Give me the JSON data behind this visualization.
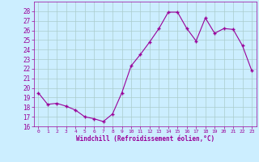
{
  "x": [
    0,
    1,
    2,
    3,
    4,
    5,
    6,
    7,
    8,
    9,
    10,
    11,
    12,
    13,
    14,
    15,
    16,
    17,
    18,
    19,
    20,
    21,
    22,
    23
  ],
  "y": [
    19.5,
    18.3,
    18.4,
    18.1,
    17.7,
    17.0,
    16.8,
    16.5,
    17.3,
    19.5,
    22.3,
    23.5,
    24.8,
    26.2,
    27.9,
    27.9,
    26.2,
    24.9,
    27.3,
    25.7,
    26.2,
    26.1,
    24.4,
    21.8
  ],
  "line_color": "#990099",
  "marker": "+",
  "marker_color": "#990099",
  "bg_color": "#cceeff",
  "grid_color": "#aacccc",
  "xlabel": "Windchill (Refroidissement éolien,°C)",
  "xlabel_color": "#990099",
  "tick_color": "#990099",
  "ylim": [
    16,
    29
  ],
  "xlim": [
    -0.5,
    23.5
  ],
  "yticks": [
    16,
    17,
    18,
    19,
    20,
    21,
    22,
    23,
    24,
    25,
    26,
    27,
    28
  ],
  "xticks": [
    0,
    1,
    2,
    3,
    4,
    5,
    6,
    7,
    8,
    9,
    10,
    11,
    12,
    13,
    14,
    15,
    16,
    17,
    18,
    19,
    20,
    21,
    22,
    23
  ]
}
